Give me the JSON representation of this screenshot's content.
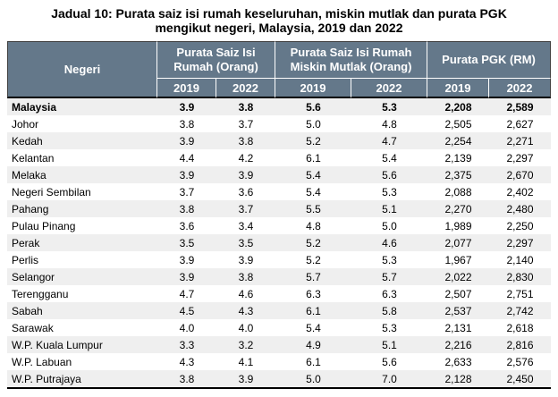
{
  "title": {
    "line1": "Jadual 10: Purata saiz isi rumah keseluruhan, miskin mutlak dan purata PGK",
    "line2": "mengikut negeri, Malaysia, 2019 dan 2022"
  },
  "table": {
    "columns": {
      "negeri": "Negeri",
      "group1": {
        "line1": "Purata Saiz Isi",
        "line2": "Rumah (Orang)"
      },
      "group2": {
        "line1": "Purata Saiz Isi Rumah",
        "line2": "Miskin Mutlak (Orang)"
      },
      "group3": "Purata PGK (RM)",
      "years": [
        "2019",
        "2022"
      ]
    },
    "rows": [
      {
        "negeri": "Malaysia",
        "bold": true,
        "values": [
          "3.9",
          "3.8",
          "5.6",
          "5.3",
          "2,208",
          "2,589"
        ]
      },
      {
        "negeri": "Johor",
        "bold": false,
        "values": [
          "3.8",
          "3.7",
          "5.0",
          "4.8",
          "2,505",
          "2,627"
        ]
      },
      {
        "negeri": "Kedah",
        "bold": false,
        "values": [
          "3.9",
          "3.8",
          "5.2",
          "4.7",
          "2,254",
          "2,271"
        ]
      },
      {
        "negeri": "Kelantan",
        "bold": false,
        "values": [
          "4.4",
          "4.2",
          "6.1",
          "5.4",
          "2,139",
          "2,297"
        ]
      },
      {
        "negeri": "Melaka",
        "bold": false,
        "values": [
          "3.9",
          "3.9",
          "5.4",
          "5.6",
          "2,375",
          "2,670"
        ]
      },
      {
        "negeri": "Negeri Sembilan",
        "bold": false,
        "values": [
          "3.7",
          "3.6",
          "5.4",
          "5.3",
          "2,088",
          "2,402"
        ]
      },
      {
        "negeri": "Pahang",
        "bold": false,
        "values": [
          "3.8",
          "3.7",
          "5.5",
          "5.1",
          "2,270",
          "2,480"
        ]
      },
      {
        "negeri": "Pulau Pinang",
        "bold": false,
        "values": [
          "3.6",
          "3.4",
          "4.8",
          "5.0",
          "1,989",
          "2,250"
        ]
      },
      {
        "negeri": "Perak",
        "bold": false,
        "values": [
          "3.5",
          "3.5",
          "5.2",
          "4.6",
          "2,077",
          "2,297"
        ]
      },
      {
        "negeri": "Perlis",
        "bold": false,
        "values": [
          "3.9",
          "3.9",
          "5.2",
          "5.3",
          "1,967",
          "2,140"
        ]
      },
      {
        "negeri": "Selangor",
        "bold": false,
        "values": [
          "3.9",
          "3.8",
          "5.7",
          "5.7",
          "2,022",
          "2,830"
        ]
      },
      {
        "negeri": "Terengganu",
        "bold": false,
        "values": [
          "4.7",
          "4.6",
          "6.3",
          "6.3",
          "2,507",
          "2,751"
        ]
      },
      {
        "negeri": "Sabah",
        "bold": false,
        "values": [
          "4.5",
          "4.3",
          "6.1",
          "5.8",
          "2,537",
          "2,742"
        ]
      },
      {
        "negeri": "Sarawak",
        "bold": false,
        "values": [
          "4.0",
          "4.0",
          "5.4",
          "5.3",
          "2,131",
          "2,618"
        ]
      },
      {
        "negeri": "W.P. Kuala Lumpur",
        "bold": false,
        "values": [
          "3.3",
          "3.2",
          "4.9",
          "5.1",
          "2,216",
          "2,816"
        ]
      },
      {
        "negeri": "W.P. Labuan",
        "bold": false,
        "values": [
          "4.3",
          "4.1",
          "6.1",
          "5.6",
          "2,633",
          "2,576"
        ]
      },
      {
        "negeri": "W.P. Putrajaya",
        "bold": false,
        "values": [
          "3.8",
          "3.9",
          "5.0",
          "7.0",
          "2,128",
          "2,450"
        ]
      }
    ]
  },
  "colors": {
    "header_bg": "#64788A",
    "header_text": "#FFFFFF",
    "row_alt": "#EFEFEF",
    "border_dark": "#000000",
    "header_outline": "#404040",
    "body_text": "#000000"
  }
}
